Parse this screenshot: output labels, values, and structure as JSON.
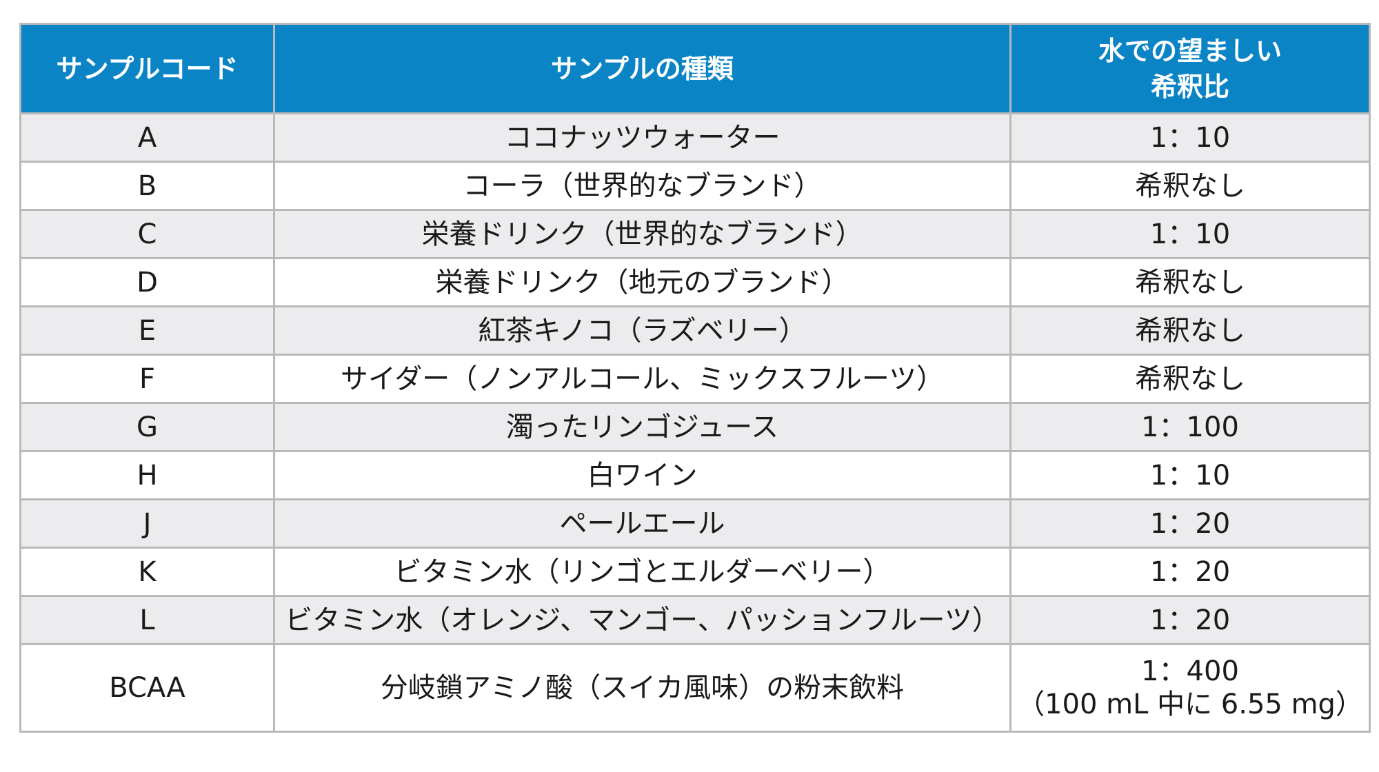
{
  "header": {
    "code": "サンプルコード",
    "type": "サンプルの種類",
    "dilution_line1": "水での望ましい",
    "dilution_line2": "希釈比"
  },
  "rows": [
    {
      "code": "A",
      "type": "ココナッツウォーター",
      "dilution": "1：10"
    },
    {
      "code": "B",
      "type": "コーラ（世界的なブランド）",
      "dilution": "希釈なし"
    },
    {
      "code": "C",
      "type": "栄養ドリンク（世界的なブランド）",
      "dilution": "1：10"
    },
    {
      "code": "D",
      "type": "栄養ドリンク（地元のブランド）",
      "dilution": "希釈なし"
    },
    {
      "code": "E",
      "type": "紅茶キノコ（ラズベリー）",
      "dilution": "希釈なし"
    },
    {
      "code": "F",
      "type": "サイダー（ノンアルコール、ミックスフルーツ）",
      "dilution": "希釈なし"
    },
    {
      "code": "G",
      "type": "濁ったリンゴジュース",
      "dilution": "1：100"
    },
    {
      "code": "H",
      "type": "白ワイン",
      "dilution": "1：10"
    },
    {
      "code": "J",
      "type": "ペールエール",
      "dilution": "1：20"
    },
    {
      "code": "K",
      "type": "ビタミン水（リンゴとエルダーベリー）",
      "dilution": "1：20"
    },
    {
      "code": "L",
      "type": "ビタミン水（オレンジ、マンゴー、パッションフルーツ）",
      "dilution": "1：20"
    },
    {
      "code": "BCAA",
      "type": "分岐鎖アミノ酸（スイカ風味）の粉末飲料",
      "dilution": "1：400",
      "dilution_note": "（100 mL 中に 6.55 mg）"
    }
  ],
  "colors": {
    "header_bg": "#0b84c6",
    "header_text": "#ffffff",
    "row_shade": "#ececef",
    "border": "#b9b9b9"
  }
}
